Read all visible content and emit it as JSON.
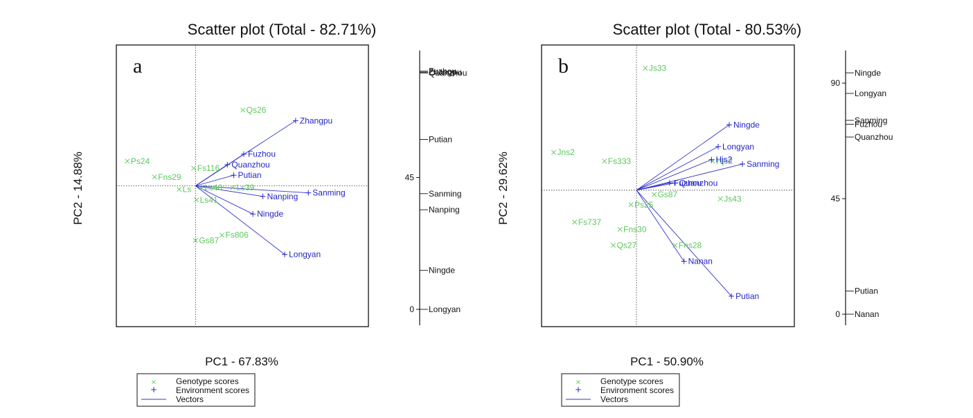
{
  "chart_data": [
    {
      "type": "scatter",
      "panel_label": "a",
      "title": "Scatter plot (Total - 82.71%)",
      "xlabel": "PC1 - 67.83%",
      "ylabel": "PC2 - 14.88%",
      "genotype_scores": [
        {
          "label": "Qs26",
          "x": 5.2,
          "y": 4.3
        },
        {
          "label": "Ps24",
          "x": -7.5,
          "y": 1.4
        },
        {
          "label": "Fns29",
          "x": -4.5,
          "y": 0.5
        },
        {
          "label": "Fs116",
          "x": -0.2,
          "y": 1.0
        },
        {
          "label": "Ls",
          "x": -1.8,
          "y": -0.2
        },
        {
          "label": "Ls40",
          "x": 0.6,
          "y": -0.1
        },
        {
          "label": "Ls39",
          "x": 4.1,
          "y": -0.1
        },
        {
          "label": "Ls41",
          "x": 0.1,
          "y": -0.8
        },
        {
          "label": "Fs806",
          "x": 2.9,
          "y": -2.8
        },
        {
          "label": "Gs87",
          "x": 0.0,
          "y": -3.1
        }
      ],
      "environment_scores": [
        {
          "label": "Zhangpu",
          "x": 11.0,
          "y": 3.7
        },
        {
          "label": "Fuzhou",
          "x": 5.3,
          "y": 1.8
        },
        {
          "label": "Quanzhou",
          "x": 3.5,
          "y": 1.2
        },
        {
          "label": "Putian",
          "x": 4.2,
          "y": 0.6
        },
        {
          "label": "Nanping",
          "x": 7.4,
          "y": -0.6
        },
        {
          "label": "Sanming",
          "x": 12.4,
          "y": -0.4
        },
        {
          "label": "Ningde",
          "x": 6.3,
          "y": -1.6
        },
        {
          "label": "Longyan",
          "x": 9.8,
          "y": -3.9
        }
      ],
      "xlim": [
        -8.7,
        19.0
      ],
      "ylim": [
        -8.0,
        8.0
      ],
      "scale_axis": {
        "ticks": [
          0,
          45
        ],
        "items": [
          {
            "label": "Zhangpu",
            "value": 81
          },
          {
            "label": "Fuzhou",
            "value": 81.3
          },
          {
            "label": "Quanzhou",
            "value": 80.7
          },
          {
            "label": "Putian",
            "value": 58
          },
          {
            "label": "Sanming",
            "value": 39.5
          },
          {
            "label": "Nanping",
            "value": 34
          },
          {
            "label": "Ningde",
            "value": 13.3
          },
          {
            "label": "Longyan",
            "value": 0
          }
        ]
      },
      "legend": [
        "Genotype scores",
        "Environment scores",
        "Vectors"
      ]
    },
    {
      "type": "scatter",
      "panel_label": "b",
      "title": "Scatter plot (Total - 80.53%)",
      "xlabel": "PC1 - 50.90%",
      "ylabel": "PC2 - 29.62%",
      "genotype_scores": [
        {
          "label": "Js33",
          "x": 0.8,
          "y": 8.4
        },
        {
          "label": "Jns2",
          "x": -7.5,
          "y": 2.6
        },
        {
          "label": "Fs333",
          "x": -2.9,
          "y": 2.0
        },
        {
          "label": "Hjs2",
          "x": 6.9,
          "y": 2.0
        },
        {
          "label": "Gs87",
          "x": 1.6,
          "y": -0.3
        },
        {
          "label": "Js43",
          "x": 7.6,
          "y": -0.6
        },
        {
          "label": "Ps25",
          "x": -0.5,
          "y": -1.0
        },
        {
          "label": "Fs737",
          "x": -5.6,
          "y": -2.2
        },
        {
          "label": "Fns30",
          "x": -1.5,
          "y": -2.7
        },
        {
          "label": "Qs27",
          "x": -2.1,
          "y": -3.8
        },
        {
          "label": "Fns28",
          "x": 3.5,
          "y": -3.8
        }
      ],
      "environment_scores": [
        {
          "label": "Ningde",
          "x": 8.4,
          "y": 4.5
        },
        {
          "label": "Longyan",
          "x": 7.4,
          "y": 3.0
        },
        {
          "label": "Hjs2",
          "x": 6.8,
          "y": 2.1
        },
        {
          "label": "Sanming",
          "x": 9.6,
          "y": 1.8
        },
        {
          "label": "Fuzhou",
          "x": 3.0,
          "y": 0.5
        },
        {
          "label": "Quanzhou",
          "x": 3.5,
          "y": 0.5
        },
        {
          "label": "Nanan",
          "x": 4.3,
          "y": -4.9
        },
        {
          "label": "Putian",
          "x": 8.6,
          "y": -7.3
        }
      ],
      "xlim": [
        -8.6,
        14.3
      ],
      "ylim": [
        -9.4,
        10.0
      ],
      "scale_axis": {
        "ticks": [
          0,
          45,
          90
        ],
        "items": [
          {
            "label": "Ningde",
            "value": 94
          },
          {
            "label": "Longyan",
            "value": 86
          },
          {
            "label": "Sanming",
            "value": 75.5
          },
          {
            "label": "Fuzhou",
            "value": 74
          },
          {
            "label": "Quanzhou",
            "value": 69
          },
          {
            "label": "Putian",
            "value": 9
          },
          {
            "label": "Nanan",
            "value": 0
          }
        ]
      },
      "legend": [
        "Genotype scores",
        "Environment scores",
        "Vectors"
      ]
    }
  ],
  "colors": {
    "genotype": "#5cc85a",
    "environment": "#2424c8",
    "vector": "#3333cc",
    "frame": "#111111"
  }
}
